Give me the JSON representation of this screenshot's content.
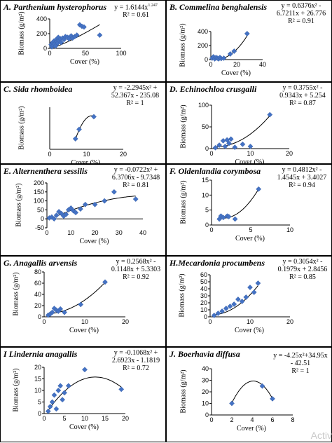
{
  "watermark": "Activ",
  "chart_data": [
    {
      "type": "scatter",
      "panel": "A",
      "title": "A. Parthenium hysterophorus",
      "equation": [
        "y = 1.6144x",
        "R² = 0.61"
      ],
      "equation_sup": "1.247",
      "xlabel": "Cover (%)",
      "ylabel": "Biomass (g/m²)",
      "xlim": [
        0,
        100
      ],
      "ylim": [
        0,
        400
      ],
      "xticks": [
        0,
        50,
        100
      ],
      "yticks": [
        0,
        200,
        400
      ],
      "points": [
        [
          2,
          50
        ],
        [
          3,
          20
        ],
        [
          4,
          80
        ],
        [
          5,
          40
        ],
        [
          6,
          100
        ],
        [
          7,
          60
        ],
        [
          8,
          30
        ],
        [
          9,
          120
        ],
        [
          10,
          90
        ],
        [
          11,
          70
        ],
        [
          12,
          150
        ],
        [
          13,
          110
        ],
        [
          15,
          130
        ],
        [
          16,
          80
        ],
        [
          18,
          140
        ],
        [
          20,
          120
        ],
        [
          22,
          160
        ],
        [
          25,
          150
        ],
        [
          27,
          130
        ],
        [
          30,
          170
        ],
        [
          32,
          140
        ],
        [
          35,
          160
        ],
        [
          38,
          180
        ],
        [
          42,
          320
        ],
        [
          45,
          300
        ],
        [
          48,
          290
        ],
        [
          70,
          180
        ]
      ],
      "trend": {
        "kind": "power",
        "a": 1.6144,
        "b": 1.247
      }
    },
    {
      "type": "scatter",
      "panel": "B",
      "title": "B. Commelina benghalensis",
      "equation": [
        "y = 0.6376x² -",
        "6.7211x + 26.776",
        "R² = 0.91"
      ],
      "xlabel": "Cover (%)",
      "ylabel": "Biomass (g/m²)",
      "xlim": [
        0,
        40
      ],
      "ylim": [
        0,
        400
      ],
      "xticks": [
        0,
        20,
        40
      ],
      "yticks": [
        0,
        200,
        400
      ],
      "points": [
        [
          1,
          20
        ],
        [
          2,
          40
        ],
        [
          3,
          10
        ],
        [
          4,
          30
        ],
        [
          5,
          20
        ],
        [
          6,
          10
        ],
        [
          7,
          30
        ],
        [
          8,
          15
        ],
        [
          10,
          20
        ],
        [
          15,
          80
        ],
        [
          18,
          120
        ],
        [
          28,
          370
        ]
      ],
      "trend": {
        "kind": "poly2",
        "a": 0.6376,
        "b": -6.7211,
        "c": 26.776
      }
    },
    {
      "type": "scatter",
      "panel": "C",
      "title": "C. Sida rhomboidea",
      "equation": [
        "y = -2.2945x² +",
        "52.367x - 235.08",
        "R² = 1"
      ],
      "xlabel": "Cover (%)",
      "ylabel": "Biomass (g/m²)",
      "xlim": [
        0,
        20
      ],
      "ylim": [
        0,
        80
      ],
      "xticks": [
        0,
        10,
        20
      ],
      "yticks": [],
      "points": [
        [
          7,
          20
        ],
        [
          8,
          38
        ],
        [
          12,
          62
        ]
      ],
      "trend": {
        "kind": "poly2",
        "a": -2.2945,
        "b": 52.367,
        "c": -235.08
      }
    },
    {
      "type": "scatter",
      "panel": "D",
      "title": "D. Echinochloa crusgalli",
      "equation": [
        "y = 0.3755x² -",
        "0.9343x + 5.254",
        "R² = 0.87"
      ],
      "xlabel": "Cover (%)",
      "ylabel": "Biomass (g/m²)",
      "xlim": [
        0,
        20
      ],
      "ylim": [
        0,
        100
      ],
      "xticks": [
        0,
        10,
        20
      ],
      "yticks": [
        0,
        50,
        100
      ],
      "points": [
        [
          1,
          2
        ],
        [
          2,
          8
        ],
        [
          3,
          18
        ],
        [
          3.5,
          5
        ],
        [
          4,
          20
        ],
        [
          4.5,
          12
        ],
        [
          5,
          22
        ],
        [
          6,
          3
        ],
        [
          8,
          10
        ],
        [
          10,
          5
        ],
        [
          15,
          78
        ]
      ],
      "trend": {
        "kind": "poly2",
        "a": 0.3755,
        "b": -0.9343,
        "c": 5.254
      }
    },
    {
      "type": "scatter",
      "panel": "E",
      "title": "E. Alternenthera sessilis",
      "equation": [
        "y = -0.0722x² +",
        "6.3706x - 9.7348",
        "R² = 0.81"
      ],
      "xlabel": "Cover (%)",
      "ylabel": "Biomass (g/m²)",
      "xlim": [
        0,
        40
      ],
      "ylim": [
        -50,
        200
      ],
      "xticks": [
        0,
        10,
        20,
        30,
        40
      ],
      "yticks": [
        -50,
        0,
        50,
        100,
        150,
        200
      ],
      "points": [
        [
          1,
          5
        ],
        [
          2,
          10
        ],
        [
          3,
          0
        ],
        [
          4,
          20
        ],
        [
          5,
          40
        ],
        [
          6,
          30
        ],
        [
          7,
          15
        ],
        [
          8,
          25
        ],
        [
          9,
          50
        ],
        [
          10,
          60
        ],
        [
          11,
          45
        ],
        [
          12,
          35
        ],
        [
          14,
          55
        ],
        [
          16,
          80
        ],
        [
          20,
          80
        ],
        [
          24,
          100
        ],
        [
          28,
          150
        ],
        [
          37,
          110
        ]
      ],
      "trend": {
        "kind": "poly2",
        "a": -0.0722,
        "b": 6.3706,
        "c": -9.7348
      }
    },
    {
      "type": "scatter",
      "panel": "F",
      "title": "F. Oldenlandia corymbosa",
      "equation": [
        "y = 0.4812x² -",
        "1.4545x + 3.4027",
        "R² = 0.94"
      ],
      "xlabel": "Cover (%)",
      "ylabel": "Biomass (g/m²)",
      "xlim": [
        0,
        10
      ],
      "ylim": [
        0,
        15
      ],
      "xticks": [
        0,
        5,
        10
      ],
      "yticks": [
        0,
        5,
        10,
        15
      ],
      "points": [
        [
          1,
          2
        ],
        [
          1.2,
          3
        ],
        [
          1.5,
          2.5
        ],
        [
          2,
          3
        ],
        [
          2.2,
          2.8
        ],
        [
          3,
          2
        ],
        [
          6,
          12
        ]
      ],
      "trend": {
        "kind": "poly2",
        "a": 0.4812,
        "b": -1.4545,
        "c": 3.4027
      }
    },
    {
      "type": "scatter",
      "panel": "G",
      "title": "G. Anagallis arvensis",
      "equation": [
        "y = 0.2568x² -",
        "0.1148x + 5.3303",
        "R² = 0.92"
      ],
      "xlabel": "Cover (%)",
      "ylabel": "Biomass (g/m²)",
      "xlim": [
        0,
        20
      ],
      "ylim": [
        0,
        80
      ],
      "xticks": [
        0,
        10,
        20
      ],
      "yticks": [
        0,
        20,
        40,
        60,
        80
      ],
      "points": [
        [
          1,
          3
        ],
        [
          1.5,
          5
        ],
        [
          2,
          8
        ],
        [
          2.5,
          15
        ],
        [
          3,
          12
        ],
        [
          3.5,
          10
        ],
        [
          4,
          14
        ],
        [
          5,
          8
        ],
        [
          9,
          22
        ],
        [
          15,
          62
        ]
      ],
      "trend": {
        "kind": "poly2",
        "a": 0.2568,
        "b": -0.1148,
        "c": 5.3303
      }
    },
    {
      "type": "scatter",
      "panel": "H",
      "title": "H.Mecardonia procumbens",
      "equation": [
        "y = 0.3054x² -",
        "0.1979x + 2.8456",
        "R² = 0.85"
      ],
      "xlabel": "Cover (%)",
      "ylabel": "Biomass (g/m²)",
      "xlim": [
        0,
        20
      ],
      "ylim": [
        0,
        60
      ],
      "xticks": [
        0,
        10,
        20
      ],
      "yticks": [
        0,
        10,
        20,
        30,
        40,
        50,
        60
      ],
      "points": [
        [
          1,
          2
        ],
        [
          2,
          5
        ],
        [
          3,
          8
        ],
        [
          4,
          12
        ],
        [
          5,
          15
        ],
        [
          6,
          18
        ],
        [
          7,
          25
        ],
        [
          8,
          22
        ],
        [
          9,
          28
        ],
        [
          10,
          42
        ],
        [
          11,
          35
        ],
        [
          12,
          48
        ]
      ],
      "trend": {
        "kind": "poly2",
        "a": 0.3054,
        "b": -0.1979,
        "c": 2.8456
      }
    },
    {
      "type": "scatter",
      "panel": "I",
      "title": "I  Lindernia anagallis",
      "equation": [
        "y = -0.1068x² +",
        "2.6923x - 1.1819",
        "R² = 0.72"
      ],
      "xlabel": "Cover (%)",
      "ylabel": "Biomass (g/m²)",
      "xlim": [
        0,
        20
      ],
      "ylim": [
        0,
        20
      ],
      "xticks": [
        0,
        5,
        10,
        15,
        20
      ],
      "yticks": [
        0,
        5,
        10,
        15,
        20
      ],
      "points": [
        [
          1,
          1
        ],
        [
          1.5,
          3
        ],
        [
          2,
          5
        ],
        [
          2.5,
          8
        ],
        [
          3,
          2
        ],
        [
          3.5,
          10
        ],
        [
          4,
          12
        ],
        [
          4.5,
          6
        ],
        [
          5,
          9
        ],
        [
          6,
          12
        ],
        [
          10,
          19
        ],
        [
          19,
          10.5
        ]
      ],
      "trend": {
        "kind": "poly2",
        "a": -0.1068,
        "b": 2.6923,
        "c": -1.1819
      }
    },
    {
      "type": "scatter",
      "panel": "J",
      "title": "J. Boerhavia diffusa",
      "equation": [
        "y = -4.25x²+34.95x",
        "- 42.51",
        "R² = 1"
      ],
      "xlabel": "Cover (%)",
      "ylabel": "Biomass (g/m²)",
      "xlim": [
        0,
        8
      ],
      "ylim": [
        0,
        40
      ],
      "xticks": [
        0,
        2,
        4,
        6,
        8
      ],
      "yticks": [
        0,
        10,
        20,
        30,
        40
      ],
      "points": [
        [
          2,
          10
        ],
        [
          5,
          25
        ],
        [
          6,
          14
        ]
      ],
      "trend": {
        "kind": "poly2",
        "a": -4.25,
        "b": 34.95,
        "c": -42.51
      }
    }
  ]
}
